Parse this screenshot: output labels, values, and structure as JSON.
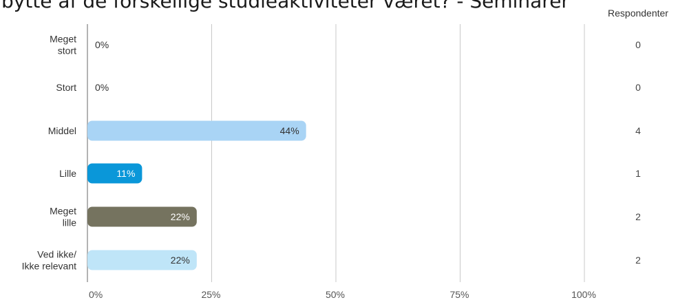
{
  "title": "bytte af de forskellige studieaktiviteter været? - Seminarer",
  "respondents_header": "Respondenter",
  "chart_data": {
    "type": "bar",
    "orientation": "horizontal",
    "categories": [
      [
        "Meget",
        "stort"
      ],
      [
        "Stort"
      ],
      [
        "Middel"
      ],
      [
        "Lille"
      ],
      [
        "Meget",
        "lille"
      ],
      [
        "Ved ikke/",
        "Ikke relevant"
      ]
    ],
    "values": [
      0,
      0,
      44,
      11,
      22,
      22
    ],
    "value_labels": [
      "0%",
      "0%",
      "44%",
      "11%",
      "22%",
      "22%"
    ],
    "respondents": [
      0,
      0,
      4,
      1,
      2,
      2
    ],
    "colors": [
      "#a9d4f5",
      "#a9d4f5",
      "#a9d4f5",
      "#0a97d9",
      "#75735f",
      "#bfe5f8"
    ],
    "label_colors": [
      "#333333",
      "#333333",
      "#333333",
      "#ffffff",
      "#ffffff",
      "#333333"
    ],
    "xlim": [
      0,
      100
    ],
    "xticks": [
      0,
      25,
      50,
      75,
      100
    ],
    "xtick_labels": [
      "0%",
      "25%",
      "50%",
      "75%",
      "100%"
    ],
    "grid": true
  }
}
